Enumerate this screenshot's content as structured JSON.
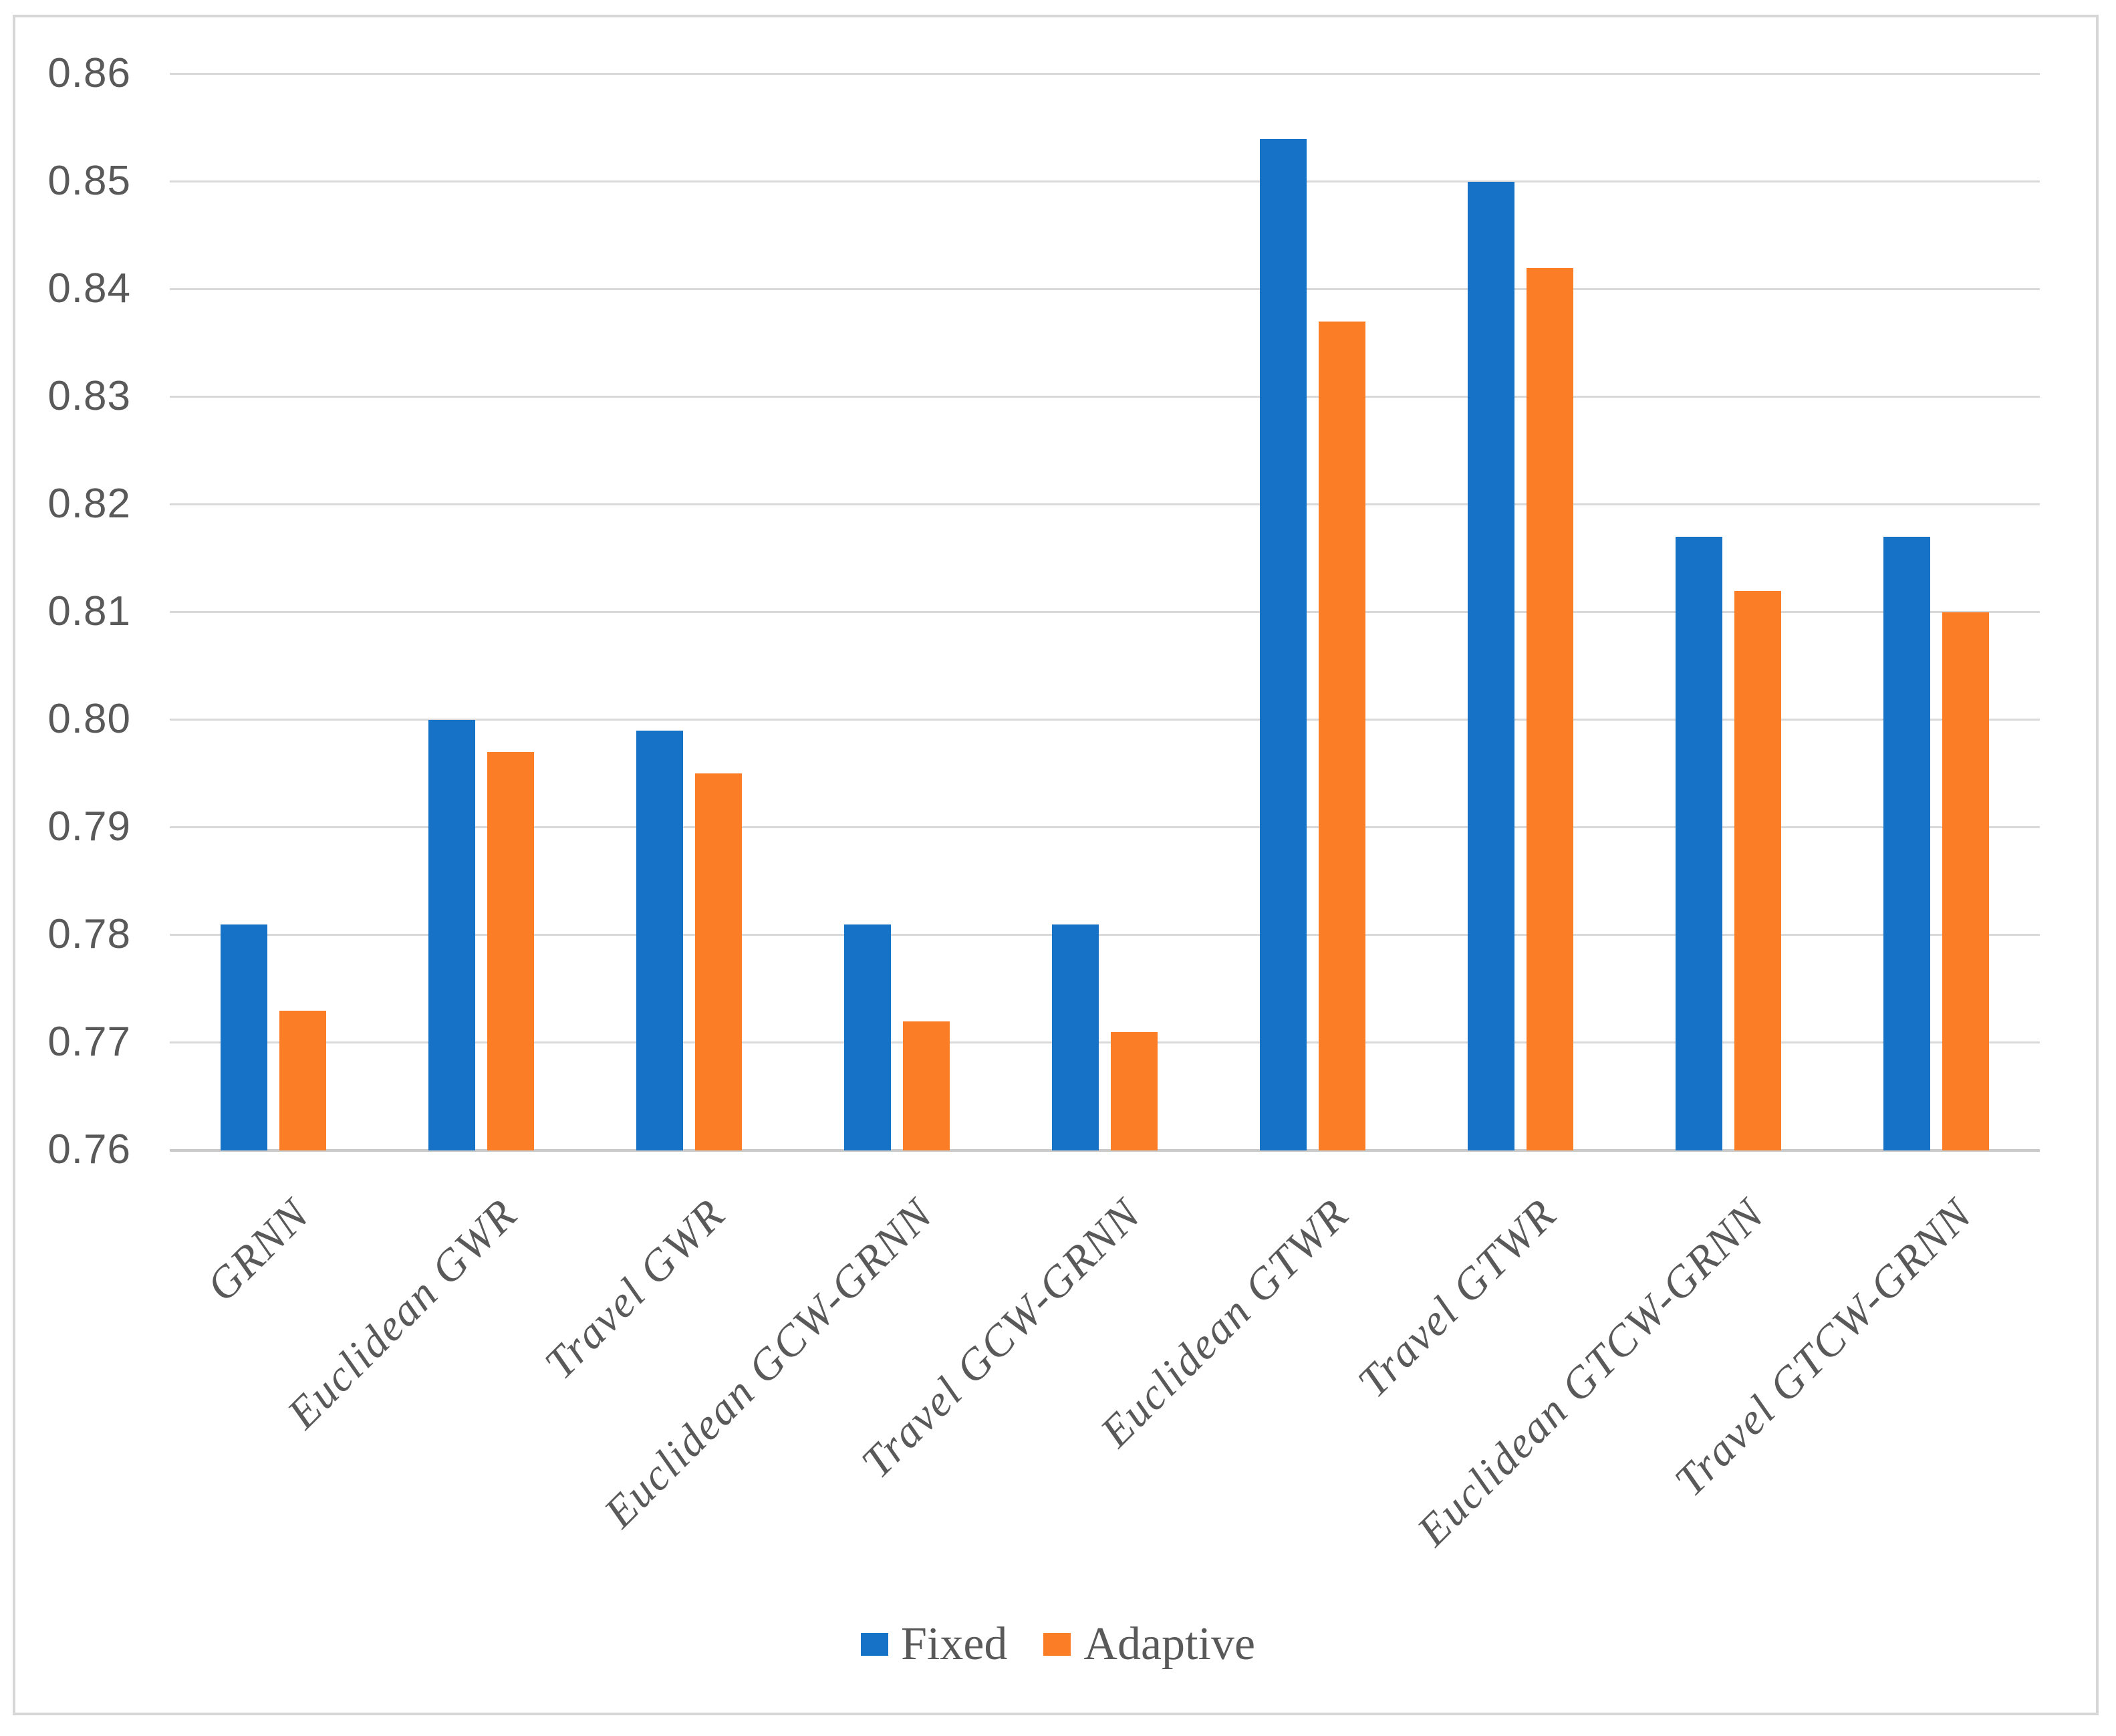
{
  "chart": {
    "background": "#FFFFFF",
    "frame_color": "#D7D7D7",
    "gridline_color": "#D9D9D9",
    "axisline_color": "#C9C9C9",
    "text_color": "#595959",
    "legend": {
      "position": "bottom",
      "items": [
        {
          "label": "Fixed",
          "color": "#1572C6",
          "marker": "square"
        },
        {
          "label": "Adaptive",
          "color": "#FB7D26",
          "marker": "square"
        }
      ]
    }
  },
  "chart_data": {
    "type": "bar",
    "title": "",
    "xlabel": "",
    "ylabel": "",
    "categories": [
      "GRNN",
      "Euclidean GWR",
      "Travel GWR",
      "Euclidean GCW-GRNN",
      "Travel GCW-GRNN",
      "Euclidean GTWR",
      "Travel GTWR",
      "Euclidean GTCW-GRNN",
      "Travel GTCW-GRNN"
    ],
    "series": [
      {
        "name": "Fixed",
        "color": "#1572C6",
        "values": [
          0.781,
          0.8,
          0.799,
          0.781,
          0.781,
          0.854,
          0.85,
          0.817,
          0.817
        ]
      },
      {
        "name": "Adaptive",
        "color": "#FB7D26",
        "values": [
          0.773,
          0.797,
          0.795,
          0.772,
          0.771,
          0.837,
          0.842,
          0.812,
          0.81
        ]
      }
    ],
    "ylim": [
      0.76,
      0.86
    ],
    "ytick_step": 0.01,
    "ytick_labels": [
      "0.76",
      "0.77",
      "0.78",
      "0.79",
      "0.80",
      "0.81",
      "0.82",
      "0.83",
      "0.84",
      "0.85",
      "0.86"
    ],
    "grid": true,
    "xtick_rotation_deg": -45,
    "legend_position": "bottom"
  }
}
